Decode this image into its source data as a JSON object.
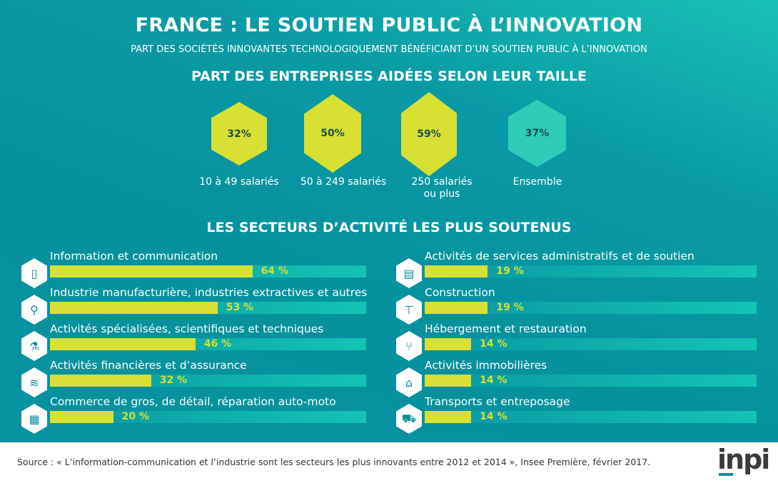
{
  "header": {
    "title": "FRANCE : LE SOUTIEN PUBLIC À L’INNOVATION",
    "subtitle": "PART DES SOCIÉTÉS INNOVANTES TECHNOLOGIQUEMENT BÉNÉFICIANT D’UN SOUTIEN PUBLIC À L’INNOVATION"
  },
  "chart_data": [
    {
      "type": "hexagon-values",
      "title": "PART DES ENTREPRISES AIDÉES SELON LEUR TAILLE",
      "categories": [
        "10 à 49 salariés",
        "50 à 249 salariés",
        "250 salariés ou plus",
        "Ensemble"
      ],
      "values": [
        32,
        50,
        59,
        37
      ],
      "labels": [
        "32%",
        "50%",
        "59%",
        "37%"
      ],
      "colors": [
        "#d8e033",
        "#d8e033",
        "#d8e033",
        "#2fcdb8"
      ]
    },
    {
      "type": "bar",
      "title": "LES SECTEURS D’ACTIVITÉ LES PLUS SOUTENUS",
      "ylim": [
        0,
        100
      ],
      "series": [
        {
          "category": "Information et communication",
          "value": 64,
          "label": "64 %",
          "icon": "tablet-icon"
        },
        {
          "category": "Industrie manufacturière, industries extractives et autres",
          "value": 53,
          "label": "53 %",
          "icon": "caliper-icon"
        },
        {
          "category": "Activités spécialisées, scientifiques et techniques",
          "value": 46,
          "label": "46 %",
          "icon": "microscope-icon"
        },
        {
          "category": "Activités financières et d’assurance",
          "value": 32,
          "label": "32 %",
          "icon": "chart-screen-icon"
        },
        {
          "category": "Commerce de gros, de détail, réparation auto-moto",
          "value": 20,
          "label": "20 %",
          "icon": "shop-icon"
        },
        {
          "category": "Activités de services administratifs et de soutien",
          "value": 19,
          "label": "19 %",
          "icon": "document-icon"
        },
        {
          "category": "Construction",
          "value": 19,
          "label": "19 %",
          "icon": "crane-icon"
        },
        {
          "category": "Hébergement et restauration",
          "value": 14,
          "label": "14 %",
          "icon": "cutlery-icon"
        },
        {
          "category": "Activités immobilières",
          "value": 14,
          "label": "14 %",
          "icon": "house-icon"
        },
        {
          "category": "Transports et entreposage",
          "value": 14,
          "label": "14 %",
          "icon": "truck-icon"
        }
      ]
    }
  ],
  "footer": {
    "source": "Source : « L’information-communication et l’industrie sont les secteurs les plus innovants entre 2012 et 2014 », Insee Première, février 2017.",
    "logo": "inpi"
  },
  "colors": {
    "accent": "#d8e033",
    "teal": "#0a8f9e"
  }
}
